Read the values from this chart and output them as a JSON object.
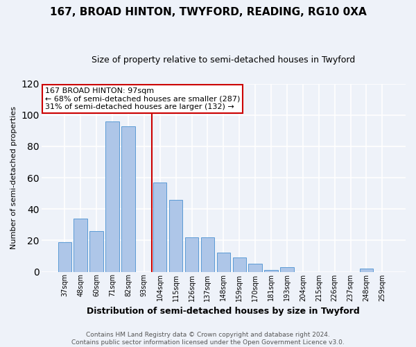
{
  "title1": "167, BROAD HINTON, TWYFORD, READING, RG10 0XA",
  "title2": "Size of property relative to semi-detached houses in Twyford",
  "xlabel": "Distribution of semi-detached houses by size in Twyford",
  "ylabel": "Number of semi-detached properties",
  "categories": [
    "37sqm",
    "48sqm",
    "60sqm",
    "71sqm",
    "82sqm",
    "93sqm",
    "104sqm",
    "115sqm",
    "126sqm",
    "137sqm",
    "148sqm",
    "159sqm",
    "170sqm",
    "181sqm",
    "193sqm",
    "204sqm",
    "215sqm",
    "226sqm",
    "237sqm",
    "248sqm",
    "259sqm"
  ],
  "values": [
    19,
    34,
    26,
    96,
    93,
    0,
    57,
    46,
    22,
    22,
    12,
    9,
    5,
    1,
    3,
    0,
    0,
    0,
    0,
    2,
    0
  ],
  "bar_color": "#aec6e8",
  "bar_edge_color": "#5b9bd5",
  "vline_x_index": 6,
  "vline_color": "#cc0000",
  "annotation_title": "167 BROAD HINTON: 97sqm",
  "annotation_line1": "← 68% of semi-detached houses are smaller (287)",
  "annotation_line2": "31% of semi-detached houses are larger (132) →",
  "annotation_box_color": "#ffffff",
  "annotation_box_edge": "#cc0000",
  "footer1": "Contains HM Land Registry data © Crown copyright and database right 2024.",
  "footer2": "Contains public sector information licensed under the Open Government Licence v3.0.",
  "ylim": [
    0,
    120
  ],
  "yticks": [
    0,
    20,
    40,
    60,
    80,
    100,
    120
  ],
  "background_color": "#eef2f9",
  "grid_color": "#ffffff",
  "title1_fontsize": 11,
  "title2_fontsize": 9,
  "xlabel_fontsize": 9,
  "ylabel_fontsize": 8,
  "tick_fontsize": 7,
  "footer_fontsize": 6.5,
  "ann_fontsize": 8
}
